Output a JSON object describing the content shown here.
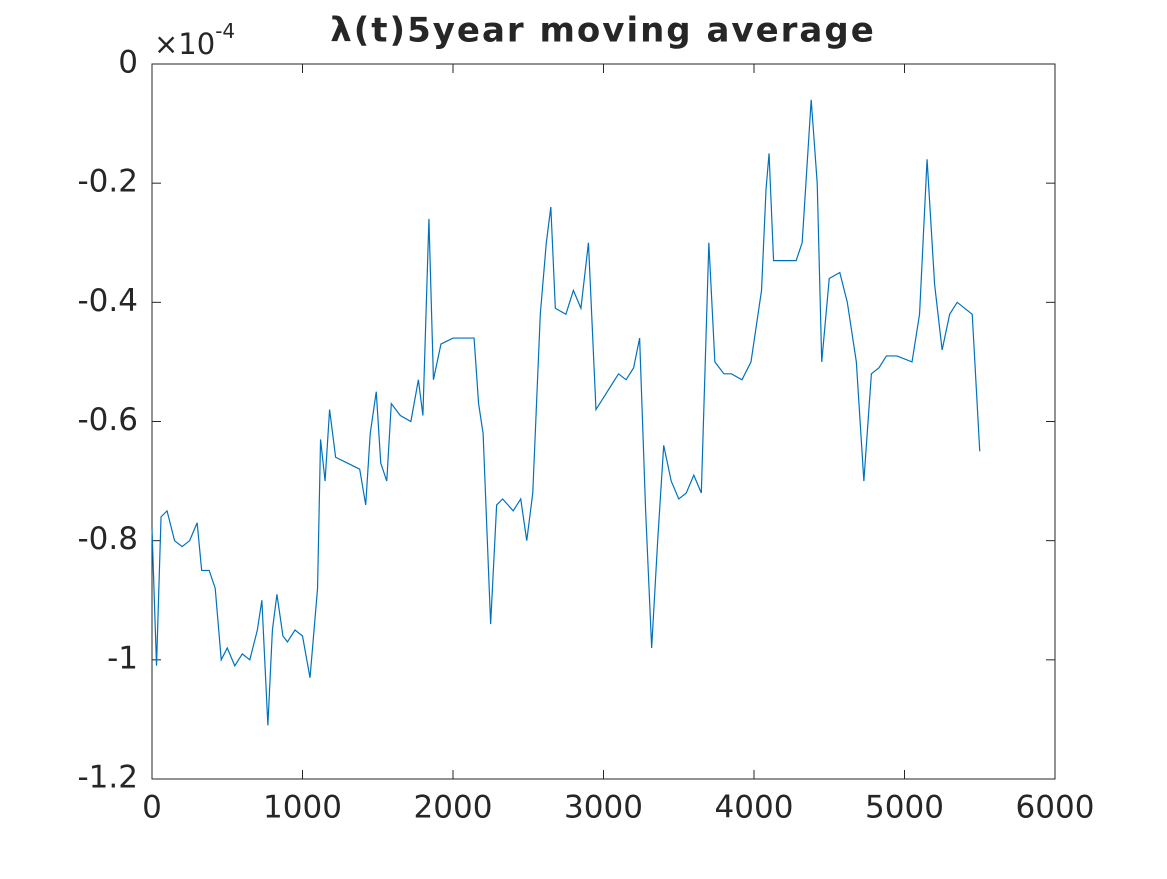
{
  "chart_data": {
    "type": "line",
    "title": "λ(t)5year moving average",
    "y_multiplier": {
      "base": "×10",
      "exponent": "-4"
    },
    "x": [
      0,
      30,
      60,
      100,
      150,
      200,
      250,
      300,
      330,
      380,
      420,
      460,
      500,
      550,
      600,
      650,
      700,
      730,
      770,
      800,
      830,
      870,
      900,
      950,
      1000,
      1050,
      1100,
      1120,
      1150,
      1180,
      1220,
      1300,
      1380,
      1420,
      1450,
      1490,
      1520,
      1560,
      1590,
      1650,
      1720,
      1770,
      1800,
      1840,
      1870,
      1920,
      2000,
      2100,
      2140,
      2170,
      2200,
      2250,
      2290,
      2330,
      2400,
      2450,
      2490,
      2530,
      2580,
      2620,
      2650,
      2680,
      2750,
      2800,
      2850,
      2900,
      2950,
      3000,
      3050,
      3100,
      3150,
      3200,
      3240,
      3280,
      3320,
      3360,
      3400,
      3450,
      3500,
      3550,
      3600,
      3650,
      3700,
      3740,
      3800,
      3850,
      3920,
      3980,
      4050,
      4080,
      4100,
      4130,
      4200,
      4280,
      4320,
      4380,
      4420,
      4450,
      4500,
      4570,
      4620,
      4680,
      4730,
      4780,
      4830,
      4880,
      4950,
      5050,
      5100,
      5150,
      5200,
      5250,
      5300,
      5350,
      5400,
      5450,
      5500
    ],
    "series": [
      {
        "color": "#0072bd",
        "values": [
          -0.78,
          -1.01,
          -0.76,
          -0.75,
          -0.8,
          -0.81,
          -0.8,
          -0.77,
          -0.85,
          -0.85,
          -0.88,
          -1.0,
          -0.98,
          -1.01,
          -0.99,
          -1.0,
          -0.95,
          -0.9,
          -1.11,
          -0.95,
          -0.89,
          -0.96,
          -0.97,
          -0.95,
          -0.96,
          -1.03,
          -0.88,
          -0.63,
          -0.7,
          -0.58,
          -0.66,
          -0.67,
          -0.68,
          -0.74,
          -0.62,
          -0.55,
          -0.67,
          -0.7,
          -0.57,
          -0.59,
          -0.6,
          -0.53,
          -0.59,
          -0.26,
          -0.53,
          -0.47,
          -0.46,
          -0.46,
          -0.46,
          -0.57,
          -0.62,
          -0.94,
          -0.74,
          -0.73,
          -0.75,
          -0.73,
          -0.8,
          -0.72,
          -0.42,
          -0.3,
          -0.24,
          -0.41,
          -0.42,
          -0.38,
          -0.41,
          -0.3,
          -0.58,
          -0.56,
          -0.54,
          -0.52,
          -0.53,
          -0.51,
          -0.46,
          -0.75,
          -0.98,
          -0.8,
          -0.64,
          -0.7,
          -0.73,
          -0.72,
          -0.69,
          -0.72,
          -0.3,
          -0.5,
          -0.52,
          -0.52,
          -0.53,
          -0.5,
          -0.38,
          -0.21,
          -0.15,
          -0.33,
          -0.33,
          -0.33,
          -0.3,
          -0.06,
          -0.2,
          -0.5,
          -0.36,
          -0.35,
          -0.4,
          -0.5,
          -0.7,
          -0.52,
          -0.51,
          -0.49,
          -0.49,
          -0.5,
          -0.42,
          -0.16,
          -0.37,
          -0.48,
          -0.42,
          -0.4,
          -0.41,
          -0.42,
          -0.65
        ]
      }
    ],
    "xlim": [
      0,
      6000
    ],
    "xticks": [
      0,
      1000,
      2000,
      3000,
      4000,
      5000,
      6000
    ],
    "ylim": [
      -1.2,
      0
    ],
    "yticks": [
      -1.2,
      -1,
      -0.8,
      -0.6,
      -0.4,
      -0.2,
      0
    ],
    "grid": false
  }
}
